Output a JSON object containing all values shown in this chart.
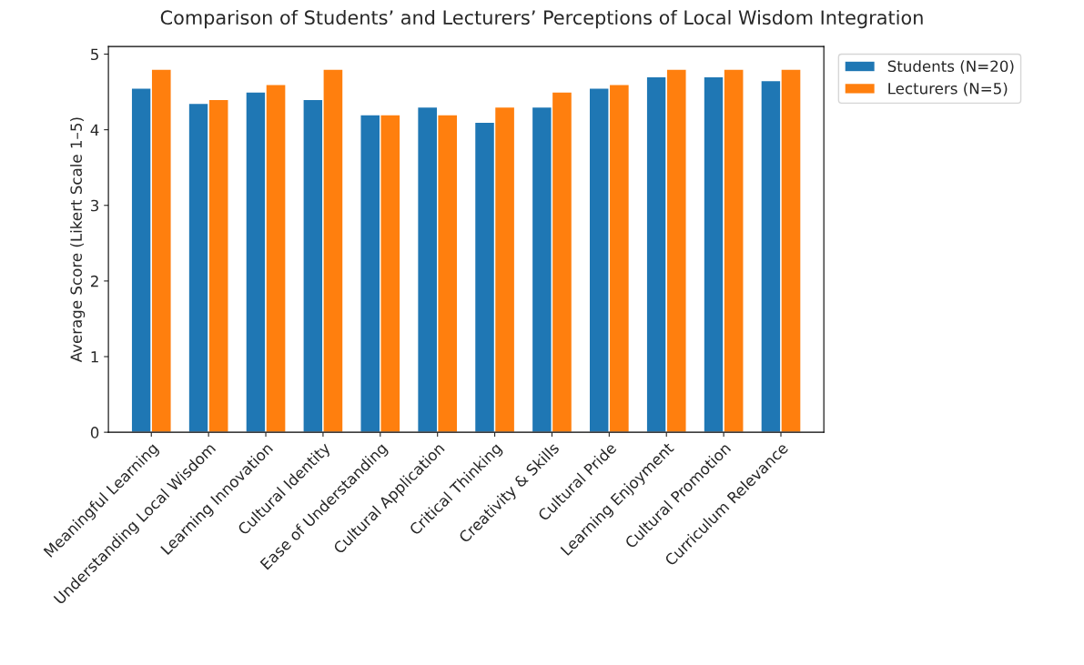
{
  "chart_data": {
    "type": "bar",
    "title": "Comparison of Students’ and Lecturers’ Perceptions of Local Wisdom Integration",
    "ylabel": "Average Score (Likert Scale 1–5)",
    "categories": [
      "Meaningful Learning",
      "Understanding Local Wisdom",
      "Learning Innovation",
      "Cultural Identity",
      "Ease of Understanding",
      "Cultural Application",
      "Critical Thinking",
      "Creativity & Skills",
      "Cultural Pride",
      "Learning Enjoyment",
      "Cultural Promotion",
      "Curriculum Relevance"
    ],
    "series": [
      {
        "name": "Students (N=20)",
        "color": "#1f77b4",
        "values": [
          4.55,
          4.35,
          4.5,
          4.4,
          4.2,
          4.3,
          4.1,
          4.3,
          4.55,
          4.7,
          4.7,
          4.65
        ]
      },
      {
        "name": "Lecturers (N=5)",
        "color": "#ff7f0e",
        "values": [
          4.8,
          4.4,
          4.6,
          4.8,
          4.2,
          4.2,
          4.3,
          4.5,
          4.6,
          4.8,
          4.8,
          4.8
        ]
      }
    ],
    "ylim": [
      0,
      5.1
    ],
    "yticks": [
      0,
      1,
      2,
      3,
      4,
      5
    ],
    "legend": "top right"
  }
}
